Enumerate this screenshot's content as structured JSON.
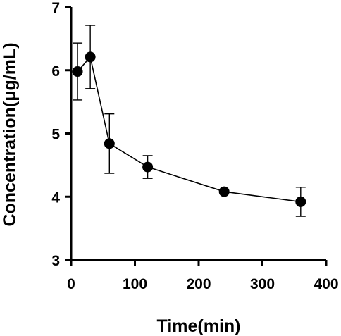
{
  "chart_data": {
    "type": "line",
    "title": "",
    "xlabel": "Time(min)",
    "ylabel": "Concentration(μg/mL)",
    "xlim": [
      0,
      400
    ],
    "ylim": [
      3,
      7
    ],
    "xticks": [
      0,
      100,
      200,
      300,
      400
    ],
    "yticks": [
      3,
      4,
      5,
      6,
      7
    ],
    "xtick_labels": [
      "0",
      "100",
      "200",
      "300",
      "400"
    ],
    "ytick_labels": [
      "3",
      "4",
      "5",
      "6",
      "7"
    ],
    "grid": false,
    "legend": "none",
    "series": [
      {
        "x": [
          10,
          30,
          60,
          120,
          240,
          360
        ],
        "y": [
          5.98,
          6.21,
          4.84,
          4.47,
          4.08,
          3.92
        ],
        "error": [
          0.45,
          0.5,
          0.47,
          0.18,
          0.0,
          0.23
        ],
        "color": "#000000",
        "marker": "circle"
      }
    ]
  }
}
